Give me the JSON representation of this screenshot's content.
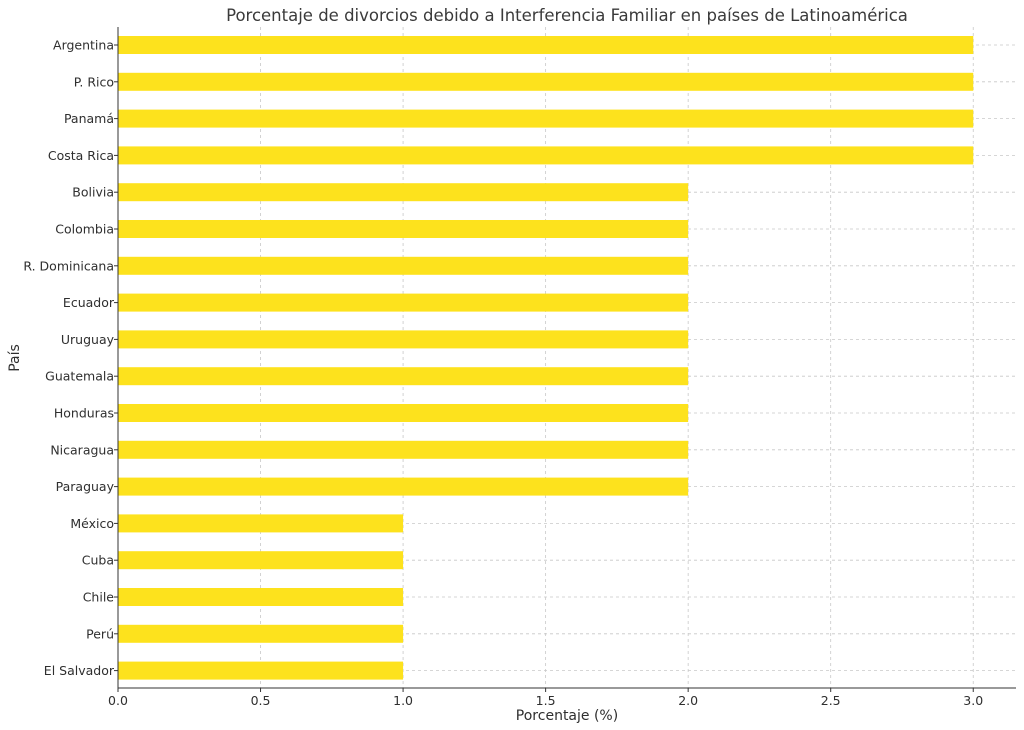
{
  "chart_data": {
    "type": "bar",
    "orientation": "horizontal",
    "title": "Porcentaje de divorcios debido a Interferencia Familiar en países de Latinoamérica",
    "xlabel": "Porcentaje (%)",
    "ylabel": "País",
    "xlim": [
      0,
      3.15
    ],
    "xticks": [
      "0.0",
      "0.5",
      "1.0",
      "1.5",
      "2.0",
      "2.5",
      "3.0"
    ],
    "grid": true,
    "bar_color": "#FDE21D",
    "categories": [
      "Argentina",
      "P. Rico",
      "Panamá",
      "Costa Rica",
      "Bolivia",
      "Colombia",
      "R. Dominicana",
      "Ecuador",
      "Uruguay",
      "Guatemala",
      "Honduras",
      "Nicaragua",
      "Paraguay",
      "México",
      "Cuba",
      "Chile",
      "Perú",
      "El Salvador"
    ],
    "values": [
      3,
      3,
      3,
      3,
      2,
      2,
      2,
      2,
      2,
      2,
      2,
      2,
      2,
      1,
      1,
      1,
      1,
      1
    ]
  }
}
